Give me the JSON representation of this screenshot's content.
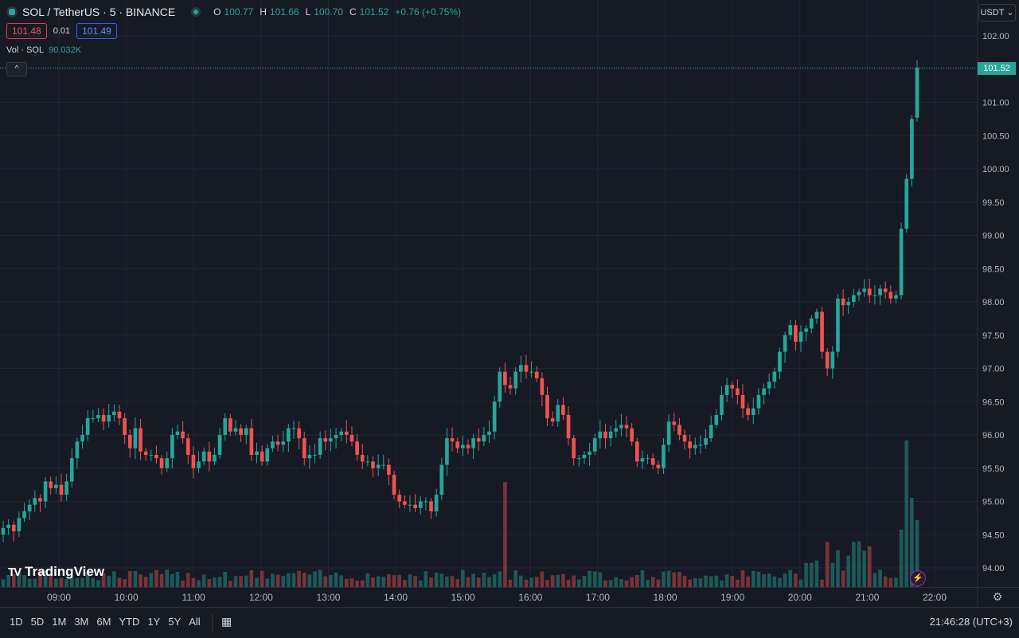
{
  "header": {
    "title": "SOL / TetherUS · 5 · BINANCE",
    "ohlc": {
      "o_label": "O",
      "o_value": "100.77",
      "h_label": "H",
      "h_value": "101.66",
      "l_label": "L",
      "l_value": "100.70",
      "c_label": "C",
      "c_value": "101.52",
      "change": "+0.76 (+0.75%)"
    },
    "bid": "101.48",
    "spread": "0.01",
    "ask": "101.49",
    "volume_label": "Vol · SOL",
    "volume_value": "90.032K",
    "collapse_icon": "^"
  },
  "price_scale": {
    "currency": "USDT ⌄",
    "last_price": "101.52"
  },
  "bottom": {
    "ranges": [
      "1D",
      "5D",
      "1M",
      "3M",
      "6M",
      "YTD",
      "1Y",
      "5Y",
      "All"
    ],
    "goto_icon": "calendar-icon",
    "clock": "21:46:28 (UTC+3)"
  },
  "branding": {
    "logo_text": "TradingView",
    "logo_mark": "TV"
  },
  "colors": {
    "up": "#26a69a",
    "down": "#ef5350",
    "background": "#161a25",
    "grid": "#232632"
  },
  "chart_data": {
    "type": "candlestick",
    "symbol": "SOL / TetherUS",
    "interval": "5",
    "exchange": "BINANCE",
    "y_ticks": [
      94.0,
      94.5,
      95.0,
      95.5,
      96.0,
      96.5,
      97.0,
      97.5,
      98.0,
      98.5,
      99.0,
      99.5,
      100.0,
      100.5,
      101.0,
      101.5,
      102.0
    ],
    "y_tick_labels": [
      "94.00",
      "94.50",
      "95.00",
      "95.50",
      "96.00",
      "96.50",
      "97.00",
      "97.50",
      "98.00",
      "98.50",
      "99.00",
      "99.50",
      "100.00",
      "100.50",
      "101.00",
      "101.50",
      "102.00"
    ],
    "ylim": [
      93.8,
      102.5
    ],
    "x_ticks": [
      "09:00",
      "10:00",
      "11:00",
      "12:00",
      "13:00",
      "14:00",
      "15:00",
      "16:00",
      "17:00",
      "18:00",
      "19:00",
      "20:00",
      "21:00",
      "22:00"
    ],
    "last_price": 101.52,
    "candle_closes": [
      94.6,
      94.65,
      94.55,
      94.75,
      94.85,
      94.95,
      95.05,
      95.0,
      95.3,
      95.2,
      95.25,
      95.1,
      95.3,
      95.65,
      95.9,
      96.0,
      96.25,
      96.25,
      96.3,
      96.2,
      96.3,
      96.35,
      96.25,
      96.0,
      95.8,
      96.1,
      95.75,
      95.7,
      95.7,
      95.65,
      95.5,
      95.65,
      96.0,
      96.05,
      95.95,
      95.7,
      95.5,
      95.6,
      95.75,
      95.6,
      95.7,
      96.0,
      96.25,
      96.05,
      96.1,
      96.0,
      96.1,
      95.7,
      95.75,
      95.6,
      95.8,
      95.9,
      95.85,
      95.9,
      96.1,
      96.1,
      95.95,
      95.65,
      95.7,
      95.7,
      95.95,
      95.9,
      95.95,
      96.0,
      96.05,
      96.0,
      95.9,
      95.7,
      95.6,
      95.6,
      95.5,
      95.55,
      95.55,
      95.4,
      95.1,
      95.0,
      94.95,
      94.95,
      94.9,
      95.0,
      95.0,
      94.85,
      95.1,
      95.55,
      95.95,
      95.9,
      95.8,
      95.85,
      95.8,
      95.95,
      95.9,
      96.0,
      96.05,
      96.5,
      96.95,
      96.75,
      96.7,
      96.95,
      97.05,
      96.95,
      96.95,
      96.85,
      96.6,
      96.25,
      96.2,
      96.45,
      96.3,
      95.95,
      95.65,
      95.65,
      95.7,
      95.75,
      95.95,
      96.05,
      95.95,
      96.05,
      96.1,
      96.15,
      96.1,
      95.9,
      95.6,
      95.65,
      95.65,
      95.55,
      95.5,
      95.85,
      96.2,
      96.15,
      96.0,
      95.9,
      95.8,
      95.85,
      95.85,
      95.95,
      96.15,
      96.3,
      96.6,
      96.75,
      96.7,
      96.6,
      96.4,
      96.3,
      96.4,
      96.6,
      96.7,
      96.8,
      96.95,
      97.25,
      97.5,
      97.65,
      97.4,
      97.55,
      97.6,
      97.75,
      97.85,
      97.25,
      97.0,
      97.25,
      98.05,
      97.95,
      98.0,
      98.1,
      98.15,
      98.2,
      98.1,
      98.1,
      98.2,
      98.15,
      98.05,
      98.1,
      99.1,
      99.85,
      100.75,
      101.52
    ]
  }
}
